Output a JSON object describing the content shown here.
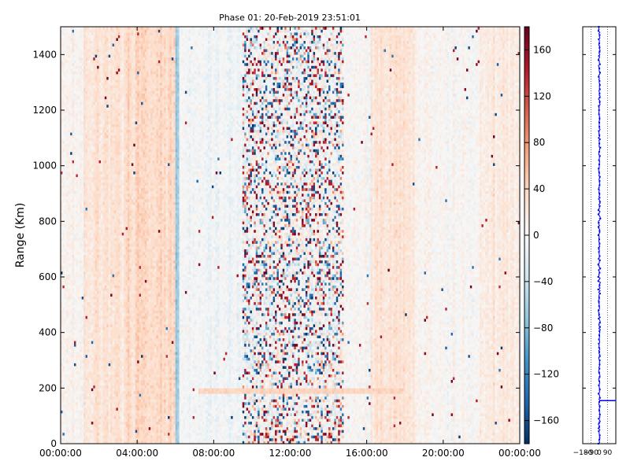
{
  "chart_data": [
    {
      "type": "heatmap",
      "title": "Phase 01: 20-Feb-2019 23:51:01",
      "xlabel": "",
      "ylabel": "Range (Km)",
      "x_ticks": [
        "00:00:00",
        "04:00:00",
        "08:00:00",
        "12:00:00",
        "16:00:00",
        "20:00:00",
        "00:00:00"
      ],
      "x_range_hours": [
        0,
        24
      ],
      "y_ticks": [
        0,
        200,
        400,
        600,
        800,
        1000,
        1200,
        1400
      ],
      "ylim": [
        0,
        1500
      ],
      "colormap": "RdBu_r",
      "colorbar": {
        "vmin": -180,
        "vmax": 180,
        "ticks": [
          -160,
          -120,
          -80,
          -40,
          0,
          40,
          80,
          120,
          160
        ],
        "colors": [
          "#053061",
          "#2166ac",
          "#4393c3",
          "#92c5de",
          "#d1e5f0",
          "#f7f7f7",
          "#fddbc7",
          "#f4a582",
          "#d6604d",
          "#b2182b",
          "#67001f"
        ]
      },
      "bands": [
        {
          "x_start": 0.0,
          "x_end": 1.2,
          "mean_phase": 5
        },
        {
          "x_start": 1.2,
          "x_end": 3.5,
          "mean_phase": 25
        },
        {
          "x_start": 3.5,
          "x_end": 6.0,
          "mean_phase": 35
        },
        {
          "x_start": 6.0,
          "x_end": 6.2,
          "mean_phase": -60
        },
        {
          "x_start": 6.2,
          "x_end": 9.5,
          "mean_phase": -5
        },
        {
          "x_start": 9.5,
          "x_end": 14.8,
          "mean_phase": 0,
          "noisy": true
        },
        {
          "x_start": 14.8,
          "x_end": 16.2,
          "mean_phase": 0
        },
        {
          "x_start": 16.2,
          "x_end": 18.5,
          "mean_phase": 25
        },
        {
          "x_start": 18.5,
          "x_end": 22.0,
          "mean_phase": 5
        },
        {
          "x_start": 22.0,
          "x_end": 24.0,
          "mean_phase": 15
        }
      ],
      "range_feature": {
        "y": 190,
        "x_start": 7.2,
        "x_end": 18.0
      }
    },
    {
      "type": "line",
      "title": "",
      "x_ticks": [
        -180,
        -90,
        0,
        90
      ],
      "x_tick_labels": [
        "-180",
        "-90",
        "0",
        "90"
      ],
      "xlim": [
        -180,
        180
      ],
      "ylim": [
        0,
        1500
      ],
      "y_ticks": [
        0,
        200,
        400,
        600,
        800,
        1000,
        1200,
        1400
      ],
      "line_color": "#0000ff",
      "profile": {
        "mean_phase": 0,
        "spread": 8,
        "step_at_range": 155,
        "step_value": 180
      }
    }
  ]
}
